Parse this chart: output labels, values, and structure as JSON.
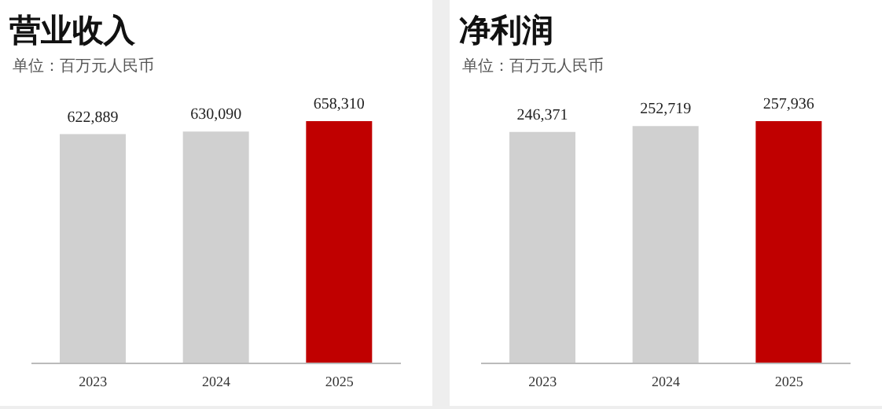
{
  "chart_data": [
    {
      "type": "bar",
      "title": "营业收入",
      "subtitle": "单位：百万元人民币",
      "categories": [
        "2023",
        "2024",
        "2025"
      ],
      "values": [
        622889,
        630090,
        658310
      ],
      "value_labels": [
        "622,889",
        "630,090",
        "658,310"
      ],
      "colors": [
        "#d0d0d0",
        "#d0d0d0",
        "#c00000"
      ],
      "tick_labels": "x"
    },
    {
      "type": "bar",
      "title": "净利润",
      "subtitle": "单位：百万元人民币",
      "categories": [
        "2023",
        "2024",
        "2025"
      ],
      "values": [
        246371,
        252719,
        257936
      ],
      "value_labels": [
        "246,371",
        "252,719",
        "257,936"
      ],
      "colors": [
        "#d0d0d0",
        "#d0d0d0",
        "#c00000"
      ],
      "tick_labels": "x"
    }
  ]
}
